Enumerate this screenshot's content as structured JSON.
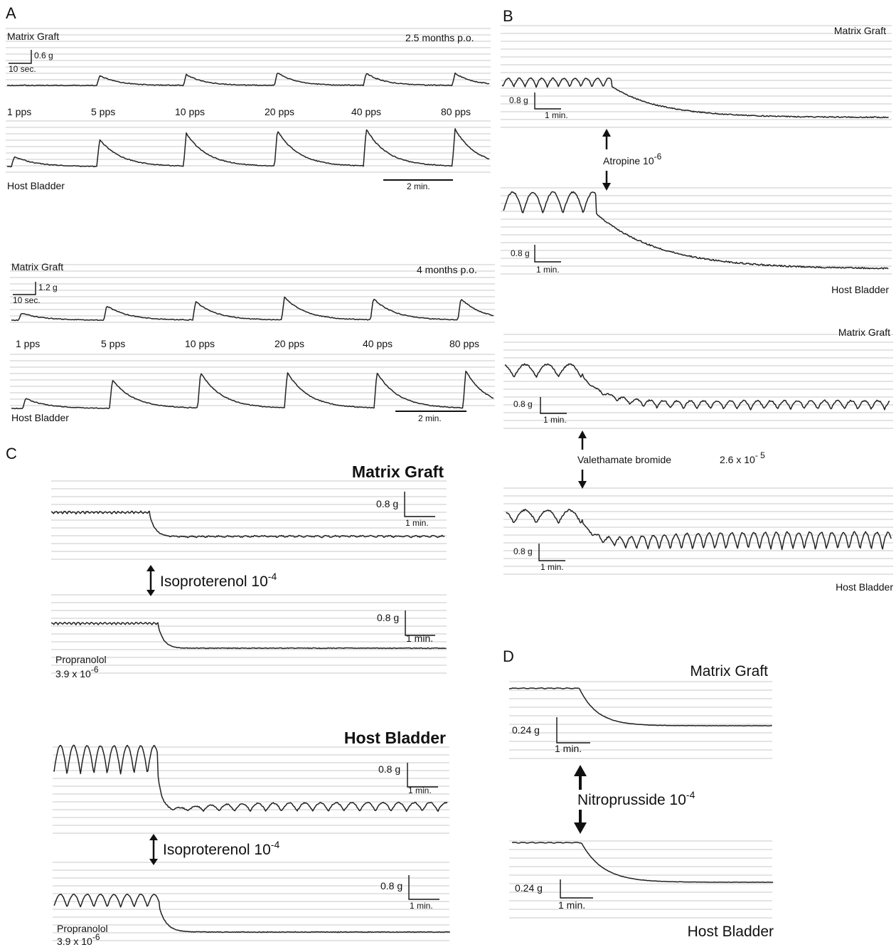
{
  "panels": {
    "a": "A",
    "b": "B",
    "c": "C",
    "d": "D"
  },
  "panel_a": {
    "top": {
      "graft_label": "Matrix Graft",
      "timepoint": "2.5  months  p.o.",
      "scale_force": "0.6  g",
      "scale_time": "10  sec.",
      "frequencies": [
        "1  pps",
        "5  pps",
        "10  pps",
        "20  pps",
        "40  pps",
        "80  pps"
      ],
      "host_label": "Host Bladder",
      "time_bar": "2  min."
    },
    "bottom": {
      "graft_label": "Matrix Graft",
      "timepoint": "4  months  p.o.",
      "scale_force": "1.2  g",
      "scale_time": "10  sec.",
      "frequencies": [
        "1  pps",
        "5  pps",
        "10  pps",
        "20  pps",
        "40  pps",
        "80  pps"
      ],
      "host_label": "Host Bladder",
      "time_bar": "2  min."
    }
  },
  "panel_b": {
    "atropine": {
      "graft_label": "Matrix Graft",
      "host_label": "Host Bladder",
      "drug": "Atropine  10",
      "drug_exp": "-6",
      "scale_force": "0.8  g",
      "scale_time": "1  min."
    },
    "valethamate": {
      "graft_label": "Matrix Graft",
      "host_label": "Host Bladder",
      "drug": "Valethamate bromide",
      "conc": "2.6  x  10",
      "conc_exp": "- 5",
      "scale_force": "0.8  g",
      "scale_time": "1  min."
    }
  },
  "panel_c": {
    "graft_title": "Matrix  Graft",
    "host_title": "Host  Bladder",
    "drug": "Isoproterenol  10",
    "drug_exp": "-4",
    "scale_force": "0.8  g",
    "scale_time": "1  min.",
    "blocker": "Propranolol",
    "blocker_conc": "3.9  x  10",
    "blocker_exp": "-6"
  },
  "panel_d": {
    "graft_title": "Matrix Graft",
    "host_title": "Host Bladder",
    "drug": "Nitroprusside  10",
    "drug_exp": "-4",
    "scale_force": "0.24  g",
    "scale_time": "1  min."
  }
}
